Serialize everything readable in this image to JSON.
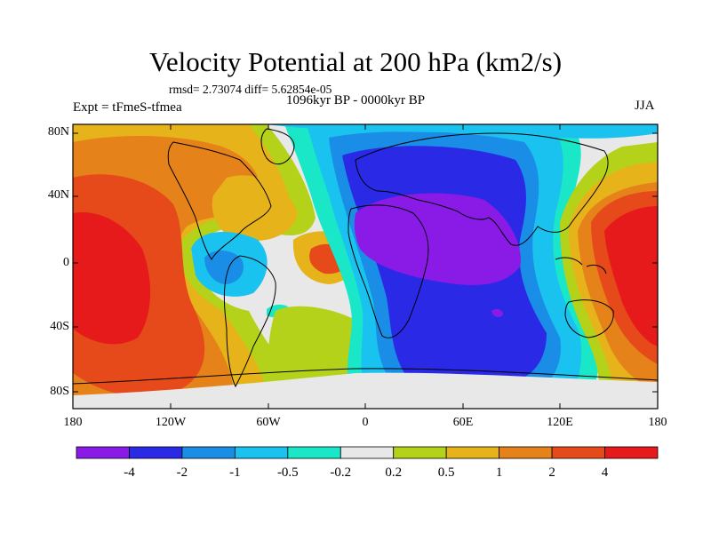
{
  "header": {
    "title": "Velocity Potential at 200 hPa (km2/s)",
    "stats": "rmsd= 2.73074  diff= 5.62854e-05",
    "experiment": "Expt = tFmeS-tfmea",
    "period": "1096kyr BP - 0000kyr BP",
    "season": "JJA"
  },
  "axes": {
    "lat_labels": [
      "80N",
      "40N",
      "0",
      "40S",
      "80S"
    ],
    "lon_labels": [
      "180",
      "120W",
      "60W",
      "0",
      "60E",
      "120E",
      "180"
    ]
  },
  "colorbar": {
    "labels": [
      "-4",
      "-2",
      "-1",
      "-0.5",
      "-0.2",
      "0.2",
      "0.5",
      "1",
      "2",
      "4"
    ],
    "colors": [
      "#8a1ae6",
      "#2a2ae6",
      "#1a8ee6",
      "#1ac2f0",
      "#1ae6c8",
      "#e8e8e8",
      "#b4d21a",
      "#e6b41a",
      "#e6821a",
      "#e64a1a",
      "#e61a1a"
    ]
  },
  "field_colors": {
    "purple": "#8a1ae6",
    "blue": "#2a2ae6",
    "mid_blue": "#1a8ee6",
    "light_blue": "#1ac2f0",
    "teal": "#1ae6c8",
    "neutral": "#e8e8e8",
    "yellow_green": "#b4d21a",
    "gold": "#e6b41a",
    "orange": "#e6821a",
    "orange_red": "#e64a1a",
    "red": "#e61a1a"
  }
}
